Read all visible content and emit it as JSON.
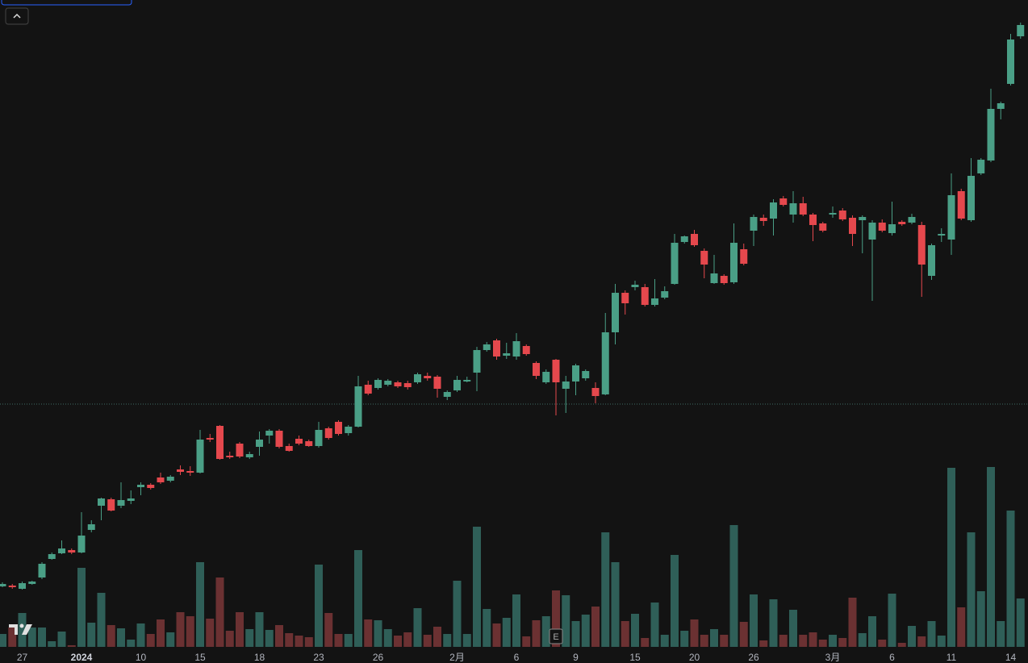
{
  "chart_data": {
    "type": "candlestick",
    "categories": [
      null,
      null,
      "27",
      null,
      null,
      null,
      null,
      null,
      "2024",
      null,
      null,
      null,
      null,
      null,
      "10",
      null,
      null,
      null,
      null,
      null,
      "15",
      null,
      null,
      null,
      null,
      null,
      "18",
      null,
      null,
      null,
      null,
      null,
      "23",
      null,
      null,
      null,
      null,
      null,
      "26",
      null,
      null,
      null,
      null,
      null,
      null,
      null,
      "2月",
      null,
      null,
      null,
      null,
      null,
      "6",
      null,
      null,
      null,
      null,
      null,
      "9",
      null,
      null,
      null,
      null,
      null,
      "15",
      null,
      null,
      null,
      null,
      null,
      "20",
      null,
      null,
      null,
      null,
      null,
      "26",
      null,
      null,
      null,
      null,
      null,
      null,
      null,
      "3月",
      null,
      null,
      null,
      null,
      null,
      "6",
      null,
      null,
      null,
      null,
      null,
      "11",
      null,
      null,
      null,
      null,
      null,
      "14",
      null
    ],
    "open": [
      95,
      96,
      92,
      98,
      106,
      129,
      136,
      140,
      137,
      165,
      195,
      203,
      195,
      201,
      218,
      221,
      230,
      226,
      240,
      238,
      236,
      279,
      294,
      257,
      272,
      255,
      268,
      282,
      288,
      269,
      278,
      275,
      269,
      291,
      299,
      285,
      293,
      345,
      341,
      345,
      348,
      347,
      348,
      356,
      355,
      330,
      338,
      349,
      360,
      388,
      400,
      381,
      380,
      393,
      372,
      348,
      376,
      340,
      349,
      353,
      341,
      333,
      410,
      459,
      466,
      466,
      444,
      453,
      470,
      522,
      532,
      511,
      471,
      480,
      472,
      513,
      536,
      552,
      551,
      576,
      556,
      570,
      556,
      545,
      556,
      561,
      552,
      549,
      525,
      546,
      533,
      547,
      546,
      543,
      480,
      530,
      525,
      585,
      549,
      607,
      623,
      687,
      718,
      777
    ],
    "high": [
      100,
      98,
      101,
      102,
      125,
      137,
      152,
      142,
      187,
      177,
      205,
      205,
      224,
      214,
      224,
      223,
      236,
      233,
      245,
      244,
      289,
      284,
      295,
      262,
      274,
      262,
      287,
      290,
      290,
      272,
      282,
      277,
      299,
      293,
      301,
      295,
      356,
      350,
      353,
      352,
      350,
      350,
      360,
      360,
      357,
      338,
      356,
      355,
      392,
      398,
      402,
      397,
      409,
      395,
      374,
      364,
      377,
      356,
      371,
      364,
      348,
      434,
      470,
      462,
      474,
      470,
      476,
      467,
      532,
      530,
      537,
      514,
      506,
      482,
      545,
      520,
      556,
      556,
      575,
      579,
      585,
      578,
      558,
      547,
      566,
      564,
      555,
      555,
      549,
      550,
      572,
      549,
      557,
      547,
      520,
      539,
      607,
      588,
      626,
      626,
      712,
      696,
      780,
      794
    ],
    "low": [
      94,
      92,
      91,
      97,
      104,
      128,
      135,
      135,
      136,
      162,
      177,
      188,
      192,
      197,
      208,
      215,
      222,
      224,
      233,
      232,
      235,
      274,
      252,
      253,
      254,
      253,
      257,
      272,
      266,
      262,
      270,
      268,
      267,
      277,
      282,
      282,
      292,
      332,
      339,
      343,
      341,
      339,
      346,
      350,
      329,
      326,
      336,
      348,
      337,
      386,
      376,
      377,
      376,
      381,
      352,
      346,
      307,
      310,
      332,
      350,
      322,
      332,
      395,
      432,
      462,
      442,
      442,
      451,
      469,
      520,
      516,
      477,
      470,
      469,
      470,
      493,
      517,
      542,
      530,
      566,
      546,
      554,
      523,
      534,
      552,
      548,
      517,
      508,
      449,
      534,
      530,
      542,
      544,
      454,
      475,
      522,
      506,
      549,
      547,
      605,
      621,
      674,
      716,
      774
    ],
    "close": [
      98,
      94,
      99,
      101,
      123,
      135,
      142,
      137,
      158,
      172,
      204,
      189,
      202,
      204,
      221,
      217,
      224,
      231,
      237,
      236,
      277,
      277,
      253,
      255,
      256,
      259,
      277,
      288,
      268,
      263,
      272,
      269,
      289,
      279,
      284,
      293,
      343,
      334,
      351,
      350,
      343,
      342,
      358,
      353,
      340,
      336,
      351,
      351,
      388,
      395,
      380,
      384,
      399,
      383,
      356,
      361,
      348,
      349,
      369,
      362,
      331,
      410,
      459,
      446,
      469,
      444,
      452,
      461,
      521,
      529,
      518,
      494,
      483,
      471,
      521,
      495,
      553,
      548,
      571,
      568,
      570,
      556,
      543,
      536,
      558,
      550,
      532,
      553,
      546,
      536,
      544,
      544,
      553,
      494,
      518,
      532,
      580,
      551,
      604,
      624,
      687,
      694,
      773,
      791
    ],
    "volume": [
      16,
      24,
      42,
      24,
      24,
      7,
      19,
      2,
      98,
      30,
      67,
      27,
      23,
      9,
      29,
      16,
      34,
      18,
      43,
      38,
      105,
      35,
      86,
      20,
      43,
      22,
      43,
      21,
      27,
      17,
      14,
      12,
      102,
      42,
      16,
      16,
      120,
      34,
      33,
      22,
      14,
      18,
      48,
      15,
      25,
      16,
      82,
      16,
      149,
      47,
      29,
      36,
      65,
      13,
      33,
      38,
      70,
      64,
      32,
      40,
      50,
      142,
      105,
      32,
      41,
      11,
      55,
      15,
      114,
      20,
      34,
      15,
      22,
      15,
      151,
      31,
      65,
      8,
      59,
      15,
      46,
      15,
      18,
      9,
      15,
      11,
      61,
      17,
      38,
      9,
      66,
      5,
      26,
      13,
      32,
      14,
      222,
      49,
      142,
      69,
      223,
      32,
      169,
      60
    ],
    "ylim": [
      0,
      822
    ],
    "volume_ylim": [
      0,
      802
    ],
    "price_line": 321,
    "up_color": "#4a9f86",
    "down_color": "#e5484d",
    "volume_up_color": "#2f5f58",
    "volume_down_color": "#6b3132",
    "earnings_marker": "E"
  }
}
